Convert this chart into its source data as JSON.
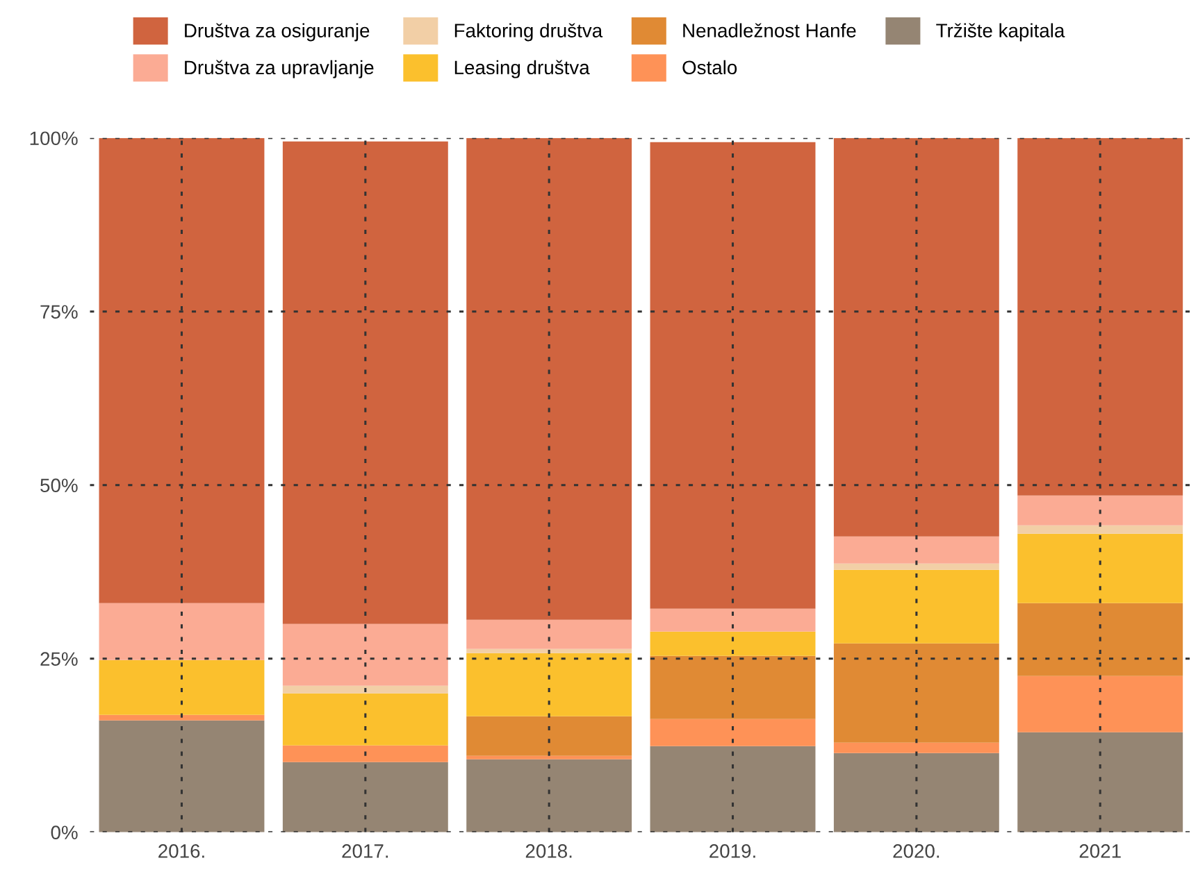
{
  "chart_data": {
    "type": "bar",
    "stacked": true,
    "categories": [
      "2016.",
      "2017.",
      "2018.",
      "2019.",
      "2020.",
      "2021"
    ],
    "series": [
      {
        "name": "Tržište kapitala",
        "color": "#958573",
        "values": [
          16.1,
          10.1,
          10.5,
          12.4,
          11.4,
          14.4
        ]
      },
      {
        "name": "Ostalo",
        "color": "#fe9257",
        "values": [
          0.8,
          2.4,
          0.5,
          3.9,
          1.5,
          8.1
        ]
      },
      {
        "name": "Nenadležnost Hanfe",
        "color": "#e08a34",
        "values": [
          0,
          0,
          5.7,
          9.1,
          14.3,
          10.5
        ]
      },
      {
        "name": "Leasing društva",
        "color": "#fbc02d",
        "values": [
          7.9,
          7.5,
          9.1,
          3.5,
          10.6,
          10.0
        ]
      },
      {
        "name": "Faktoring društva",
        "color": "#f2cfa6",
        "values": [
          0,
          1.1,
          0.6,
          0,
          0.9,
          1.2
        ]
      },
      {
        "name": "Društva za upravljanje",
        "color": "#fbab94",
        "values": [
          8.2,
          8.9,
          4.2,
          3.3,
          3.9,
          4.3
        ]
      },
      {
        "name": "Društva za osiguranje",
        "color": "#d0643f",
        "values": [
          67.0,
          69.5,
          69.4,
          67.2,
          57.4,
          51.5
        ]
      }
    ],
    "ylim": [
      0,
      100
    ],
    "yticks": [
      {
        "value": 0,
        "label": "0%"
      },
      {
        "value": 25,
        "label": "25%"
      },
      {
        "value": 50,
        "label": "50%"
      },
      {
        "value": 75,
        "label": "75%"
      },
      {
        "value": 100,
        "label": "100%"
      }
    ],
    "grid": true,
    "legend": "top"
  }
}
